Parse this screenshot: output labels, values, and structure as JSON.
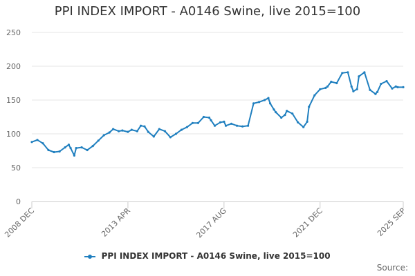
{
  "chart_data": {
    "type": "line",
    "title": "PPI INDEX IMPORT - A0146 Swine, live 2015=100",
    "xlabel": "",
    "ylabel": "",
    "ylim": [
      0,
      250
    ],
    "y_ticks": [
      0,
      50,
      100,
      150,
      200,
      250
    ],
    "x_tick_labels": [
      "2008 DEC",
      "2013 APR",
      "2017 AUG",
      "2021 DEC",
      "2025 SEP"
    ],
    "x_tick_dates": [
      "2008-12",
      "2013-04",
      "2017-08",
      "2021-12",
      "2025-09"
    ],
    "grid": "horizontal",
    "legend": "bottom-center",
    "series": [
      {
        "name": "PPI INDEX IMPORT - A0146 Swine, live 2015=100",
        "color": "#1f7fbf",
        "x": [
          "2008-12",
          "2009-03",
          "2009-06",
          "2009-09",
          "2009-12",
          "2010-03",
          "2010-06",
          "2010-08",
          "2010-09",
          "2010-11",
          "2010-12",
          "2011-03",
          "2011-06",
          "2011-09",
          "2011-12",
          "2012-03",
          "2012-06",
          "2012-08",
          "2012-11",
          "2013-01",
          "2013-04",
          "2013-06",
          "2013-09",
          "2013-11",
          "2014-01",
          "2014-03",
          "2014-06",
          "2014-09",
          "2014-12",
          "2015-03",
          "2015-06",
          "2015-09",
          "2015-12",
          "2016-03",
          "2016-06",
          "2016-09",
          "2016-12",
          "2017-01",
          "2017-03",
          "2017-06",
          "2017-08",
          "2017-09",
          "2017-12",
          "2018-03",
          "2018-06",
          "2018-09",
          "2018-12",
          "2019-03",
          "2019-06",
          "2019-08",
          "2019-09",
          "2019-11",
          "2019-12",
          "2020-03",
          "2020-05",
          "2020-06",
          "2020-09",
          "2020-12",
          "2021-03",
          "2021-05",
          "2021-06",
          "2021-09",
          "2021-12",
          "2022-03",
          "2022-04",
          "2022-06",
          "2022-09",
          "2022-12",
          "2023-03",
          "2023-05",
          "2023-06",
          "2023-08",
          "2023-09",
          "2023-12",
          "2024-03",
          "2024-06",
          "2024-07",
          "2024-09",
          "2024-12",
          "2025-03",
          "2025-05",
          "2025-06",
          "2025-09"
        ],
        "values": [
          88,
          91,
          86,
          76,
          73,
          74,
          80,
          84,
          79,
          68,
          79,
          80,
          76,
          82,
          90,
          98,
          102,
          107,
          104,
          105,
          103,
          106,
          104,
          112,
          111,
          103,
          96,
          107,
          104,
          95,
          100,
          106,
          110,
          116,
          116,
          125,
          124,
          120,
          112,
          117,
          118,
          112,
          115,
          112,
          111,
          112,
          145,
          147,
          150,
          153,
          145,
          136,
          132,
          124,
          128,
          134,
          130,
          117,
          110,
          118,
          140,
          157,
          166,
          168,
          170,
          177,
          175,
          190,
          191,
          170,
          163,
          166,
          185,
          191,
          165,
          159,
          162,
          174,
          178,
          167,
          170,
          169,
          169
        ]
      }
    ]
  },
  "credits": "Source:"
}
